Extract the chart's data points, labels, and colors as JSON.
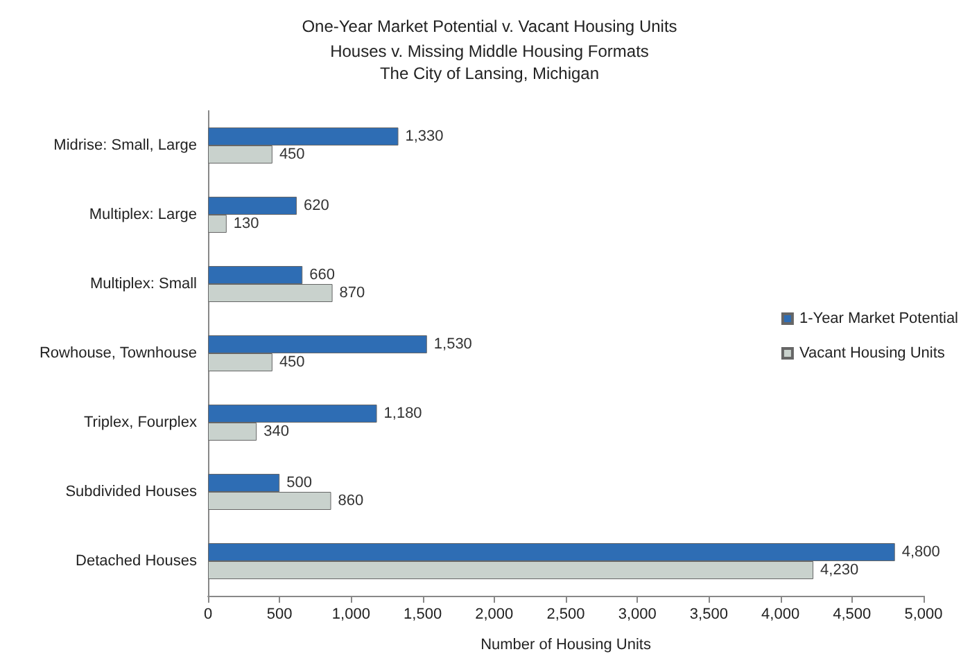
{
  "chart_data": {
    "type": "bar",
    "orientation": "horizontal",
    "title": "One-Year Market Potential v. Vacant Housing Units",
    "subtitle": "Houses v. Missing Middle Housing Formats\nThe City of Lansing, Michigan",
    "xlabel": "Number of Housing Units",
    "categories": [
      "Midrise: Small, Large",
      "Multiplex: Large",
      "Multiplex: Small",
      "Rowhouse, Townhouse",
      "Triplex, Fourplex",
      "Subdivided Houses",
      "Detached Houses"
    ],
    "series": [
      {
        "name": "1-Year Market Potential",
        "color": "#2e6db4",
        "values": [
          1330,
          620,
          660,
          1530,
          1180,
          500,
          4800
        ],
        "value_labels": [
          "1,330",
          "620",
          "660",
          "1,530",
          "1,180",
          "500",
          "4,800"
        ]
      },
      {
        "name": "Vacant Housing Units",
        "color": "#c9d2cd",
        "values": [
          450,
          130,
          870,
          450,
          340,
          860,
          4230
        ],
        "value_labels": [
          "450",
          "130",
          "870",
          "450",
          "340",
          "860",
          "4,230"
        ]
      }
    ],
    "xlim": [
      0,
      5000
    ],
    "xticks": [
      0,
      500,
      {
        "value": 1000,
        "label": "1,000"
      },
      {
        "value": 1500,
        "label": "1,500"
      },
      {
        "value": 2000,
        "label": "2,000"
      },
      {
        "value": 2500,
        "label": "2,500"
      },
      {
        "value": 3000,
        "label": "3,000"
      },
      {
        "value": 3500,
        "label": "3,500"
      },
      {
        "value": 4000,
        "label": "4,000"
      },
      {
        "value": 4500,
        "label": "4,500"
      },
      {
        "value": 5000,
        "label": "5,000"
      }
    ],
    "legend": "right",
    "grid": false
  }
}
